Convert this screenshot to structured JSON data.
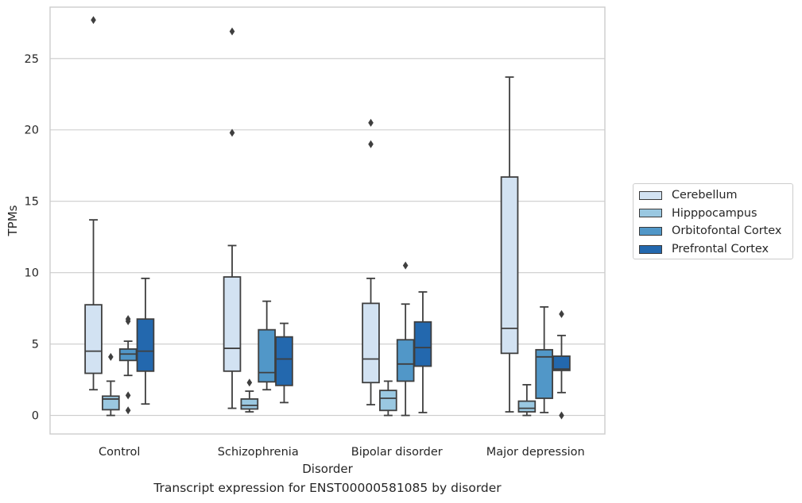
{
  "chart_data": {
    "type": "box",
    "title": "",
    "caption": "Transcript expression for ENST00000581085 by disorder",
    "xlabel": "Disorder",
    "ylabel": "TPMs",
    "ylim": [
      -1.3,
      28.6
    ],
    "yticks": [
      0,
      5,
      10,
      15,
      20,
      25
    ],
    "grid": "horizontal",
    "legend_position": "right",
    "categories": [
      "Control",
      "Schizophrenia",
      "Bipolar disorder",
      "Major depression"
    ],
    "series": [
      {
        "name": "Cerebellum",
        "color": "#d2e2f2",
        "boxes": [
          {
            "low": 1.8,
            "q1": 2.95,
            "median": 4.5,
            "q3": 7.75,
            "high": 13.7,
            "outliers": [
              27.7
            ]
          },
          {
            "low": 0.5,
            "q1": 3.1,
            "median": 4.7,
            "q3": 9.7,
            "high": 11.9,
            "outliers": [
              19.8,
              26.9
            ]
          },
          {
            "low": 0.75,
            "q1": 2.3,
            "median": 3.95,
            "q3": 7.85,
            "high": 9.6,
            "outliers": [
              19.0,
              20.5
            ]
          },
          {
            "low": 0.25,
            "q1": 4.35,
            "median": 6.1,
            "q3": 16.7,
            "high": 23.7,
            "outliers": []
          }
        ]
      },
      {
        "name": "Hipppocampus",
        "color": "#9ac8e1",
        "boxes": [
          {
            "low": 0.0,
            "q1": 0.4,
            "median": 1.15,
            "q3": 1.35,
            "high": 2.4,
            "outliers": [
              4.1
            ]
          },
          {
            "low": 0.25,
            "q1": 0.45,
            "median": 0.7,
            "q3": 1.15,
            "high": 1.7,
            "outliers": [
              2.3
            ]
          },
          {
            "low": 0.0,
            "q1": 0.35,
            "median": 1.2,
            "q3": 1.75,
            "high": 2.4,
            "outliers": []
          },
          {
            "low": 0.0,
            "q1": 0.25,
            "median": 0.5,
            "q3": 1.0,
            "high": 2.15,
            "outliers": []
          }
        ]
      },
      {
        "name": "Orbitofontal Cortex",
        "color": "#5197c8",
        "boxes": [
          {
            "low": 2.8,
            "q1": 3.85,
            "median": 4.3,
            "q3": 4.65,
            "high": 5.2,
            "outliers": [
              6.6,
              6.75,
              1.4,
              0.35
            ]
          },
          {
            "low": 1.8,
            "q1": 2.35,
            "median": 3.0,
            "q3": 6.0,
            "high": 8.0,
            "outliers": []
          },
          {
            "low": 0.0,
            "q1": 2.4,
            "median": 3.6,
            "q3": 5.3,
            "high": 7.8,
            "outliers": [
              10.5
            ]
          },
          {
            "low": 0.2,
            "q1": 1.2,
            "median": 4.1,
            "q3": 4.6,
            "high": 7.6,
            "outliers": []
          }
        ]
      },
      {
        "name": "Prefrontal Cortex",
        "color": "#2368ae",
        "boxes": [
          {
            "low": 0.8,
            "q1": 3.1,
            "median": 4.5,
            "q3": 6.75,
            "high": 9.6,
            "outliers": []
          },
          {
            "low": 0.9,
            "q1": 2.1,
            "median": 3.95,
            "q3": 5.5,
            "high": 6.45,
            "outliers": []
          },
          {
            "low": 0.2,
            "q1": 3.45,
            "median": 4.75,
            "q3": 6.55,
            "high": 8.65,
            "outliers": []
          },
          {
            "low": 1.6,
            "q1": 3.15,
            "median": 3.25,
            "q3": 4.15,
            "high": 5.6,
            "outliers": [
              7.1,
              0.0
            ]
          }
        ]
      }
    ]
  }
}
